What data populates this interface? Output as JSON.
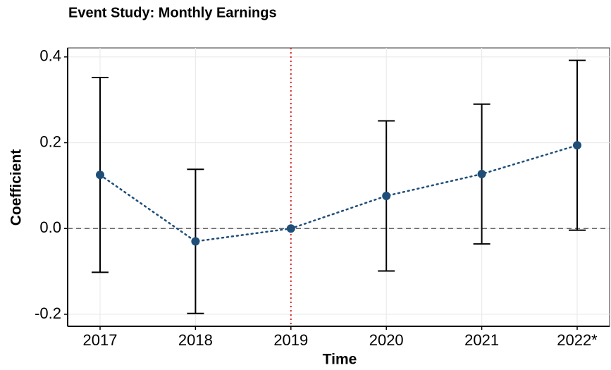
{
  "chart_data": {
    "type": "errorbar",
    "title": "Event Study: Monthly Earnings",
    "xlabel": "Time",
    "ylabel": "Coefficient",
    "categories": [
      "2017",
      "2018",
      "2019",
      "2020",
      "2021",
      "2022*"
    ],
    "values": [
      0.125,
      -0.03,
      0,
      0.076,
      0.127,
      0.194
    ],
    "errors": [
      0.227,
      0.168,
      null,
      0.175,
      0.163,
      0.198
    ],
    "color": "#1f4e79",
    "error_color": "#000000",
    "ylim": [
      -0.228,
      0.421
    ],
    "yticks": [
      -0.2,
      {
        "value": 0,
        "label": "0.0"
      },
      0.2,
      0.4
    ],
    "grid": true,
    "hline": 0,
    "vline": {
      "category": "2019",
      "color": "#d62728"
    }
  }
}
